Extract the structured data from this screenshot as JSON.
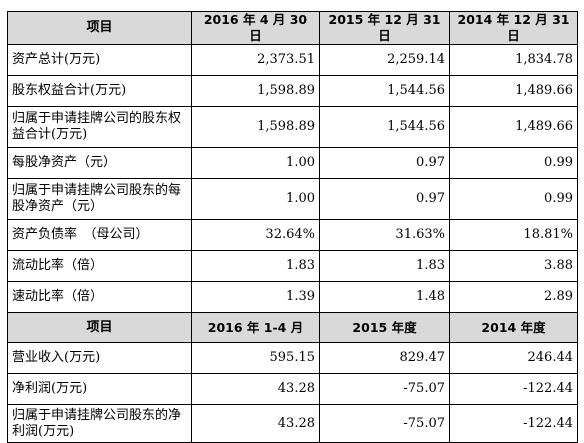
{
  "balance_headers": [
    "项目",
    "2016 年 4 月 30 日",
    "2015 年 12 月 31 日",
    "2014 年 12 月 31 日"
  ],
  "balance_rows": [
    {
      "label": "资产总计(万元)",
      "values": [
        "2,373.51",
        "2,259.14",
        "1,834.78"
      ]
    },
    {
      "label": "股东权益合计(万元)",
      "values": [
        "1,598.89",
        "1,544.56",
        "1,489.66"
      ]
    },
    {
      "label": "归属于申请挂牌公司的股东权益合计(万元)",
      "values": [
        "1,598.89",
        "1,544.56",
        "1,489.66"
      ]
    },
    {
      "label": "每股净资产（元）",
      "values": [
        "1.00",
        "0.97",
        "0.99"
      ]
    },
    {
      "label": "归属于申请挂牌公司股东的每股净资产（元）",
      "values": [
        "1.00",
        "0.97",
        "0.99"
      ]
    },
    {
      "label": "资产负债率　（母公司）",
      "values": [
        "32.64%",
        "31.63%",
        "18.81%"
      ]
    },
    {
      "label": "流动比率（倍）",
      "values": [
        "1.83",
        "1.83",
        "3.88"
      ]
    },
    {
      "label": "速动比率（倍）",
      "values": [
        "1.39",
        "1.48",
        "2.89"
      ]
    }
  ],
  "income_headers": [
    "项目",
    "2016 年 1-4 月",
    "2015 年度",
    "2014 年度"
  ],
  "income_rows": [
    {
      "label": "营业收入(万元)",
      "values": [
        "595.15",
        "829.47",
        "246.44"
      ]
    },
    {
      "label": "净利润(万元)",
      "values": [
        "43.28",
        "-75.07",
        "-122.44"
      ]
    },
    {
      "label": "归属于申请挂牌公司股东的净利润(万元)",
      "values": [
        "43.28",
        "-75.07",
        "-122.44"
      ]
    }
  ]
}
